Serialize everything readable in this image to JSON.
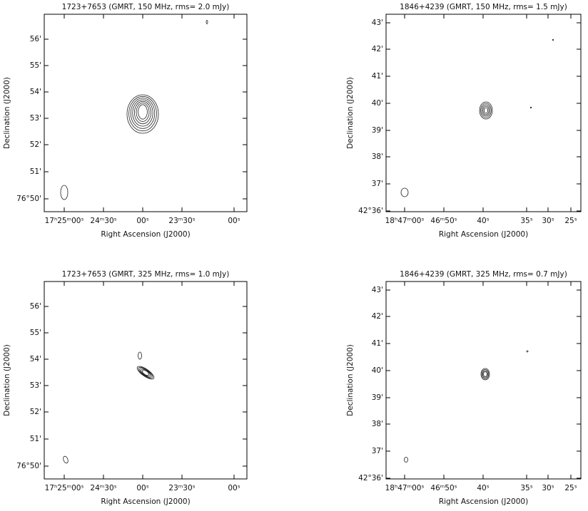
{
  "panels": [
    {
      "title": "1723+7653 (GMRT, 150 MHz, rms= 2.0 mJy)",
      "xticks": [
        "17ʰ25ᵐ00ˢ",
        "24ᵐ30ˢ",
        "00ˢ",
        "23ᵐ30ˢ",
        "00ˢ"
      ],
      "yticks": [
        "56'",
        "55'",
        "54'",
        "53'",
        "52'",
        "51'",
        "76°50'"
      ],
      "xlabel": "Right Ascension (J2000)",
      "ylabel": "Declination (J2000)"
    },
    {
      "title": "1846+4239 (GMRT, 150 MHz, rms= 1.5 mJy)",
      "xticks": [
        "18ʰ47ᵐ00ˢ",
        "46ᵐ50ˢ",
        "40ˢ",
        "35ˢ",
        "30ˢ",
        "25ˢ"
      ],
      "yticks": [
        "43'",
        "42'",
        "41'",
        "40'",
        "39'",
        "38'",
        "37'",
        "42°36'"
      ],
      "xlabel": "Right Ascension (J2000)",
      "ylabel": "Declination (J2000)"
    },
    {
      "title": "1723+7653 (GMRT, 325 MHz, rms= 1.0 mJy)",
      "xticks": [
        "17ʰ25ᵐ00ˢ",
        "24ᵐ30ˢ",
        "00ˢ",
        "23ᵐ30ˢ",
        "00ˢ"
      ],
      "yticks": [
        "56'",
        "55'",
        "54'",
        "53'",
        "52'",
        "51'",
        "76°50'"
      ],
      "xlabel": "Right Ascension (J2000)",
      "ylabel": "Declination (J2000)"
    },
    {
      "title": "1846+4239 (GMRT, 325 MHz, rms= 0.7 mJy)",
      "xticks": [
        "18ʰ47ᵐ00ˢ",
        "46ᵐ50ˢ",
        "40ˢ",
        "35ˢ",
        "30ˢ",
        "25ˢ"
      ],
      "yticks": [
        "43'",
        "42'",
        "41'",
        "40'",
        "39'",
        "38'",
        "37'",
        "42°36'"
      ],
      "xlabel": "Right Ascension (J2000)",
      "ylabel": "Declination (J2000)"
    }
  ]
}
